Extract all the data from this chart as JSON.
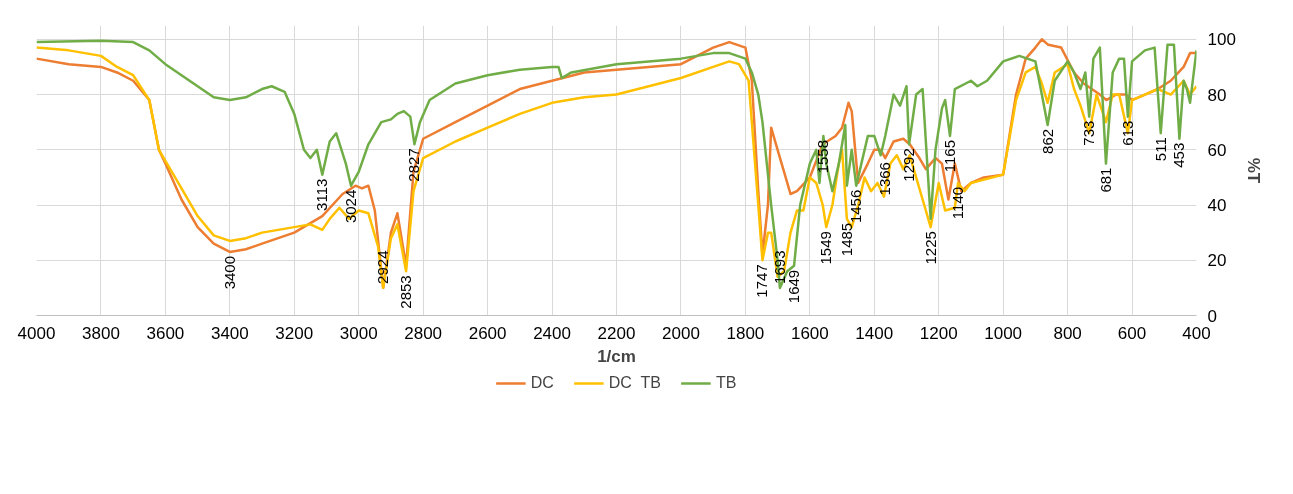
{
  "chart_data": {
    "type": "line",
    "xlabel": "1/cm",
    "ylabel": "%T",
    "xlim": [
      4000,
      400
    ],
    "ylim": [
      0,
      105
    ],
    "xticks": [
      4000,
      3800,
      3600,
      3400,
      3200,
      3000,
      2800,
      2600,
      2400,
      2200,
      2000,
      1800,
      1600,
      1400,
      1200,
      1000,
      800,
      600,
      400
    ],
    "yticks": [
      0,
      20,
      40,
      60,
      80,
      100
    ],
    "grid": true,
    "legend": "bottom",
    "marker": "none",
    "line_style": "solid",
    "series": [
      {
        "name": "DC",
        "color": "#ed7d31",
        "x": [
          4000,
          3900,
          3800,
          3750,
          3700,
          3650,
          3620,
          3600,
          3550,
          3500,
          3450,
          3400,
          3350,
          3300,
          3200,
          3113,
          3050,
          3010,
          2990,
          2970,
          2950,
          2924,
          2900,
          2880,
          2870,
          2853,
          2830,
          2800,
          2700,
          2600,
          2500,
          2400,
          2300,
          2200,
          2000,
          1900,
          1850,
          1800,
          1780,
          1760,
          1747,
          1730,
          1720,
          1700,
          1680,
          1660,
          1640,
          1600,
          1560,
          1520,
          1500,
          1480,
          1470,
          1450,
          1420,
          1400,
          1380,
          1366,
          1340,
          1310,
          1290,
          1260,
          1240,
          1210,
          1190,
          1170,
          1150,
          1130,
          1100,
          1060,
          1000,
          960,
          930,
          900,
          880,
          860,
          820,
          780,
          750,
          700,
          680,
          650,
          620,
          600,
          560,
          520,
          480,
          440,
          420,
          400
        ],
        "values": [
          93,
          91,
          90,
          88,
          85,
          78,
          60,
          55,
          42,
          32,
          26,
          23,
          24,
          26,
          30,
          36,
          44,
          47,
          46,
          47,
          38,
          10,
          30,
          37,
          30,
          18,
          52,
          64,
          70,
          76,
          82,
          85,
          88,
          89,
          91,
          97,
          99,
          97,
          85,
          45,
          22,
          40,
          68,
          60,
          52,
          44,
          45,
          50,
          62,
          65,
          68,
          77,
          74,
          48,
          55,
          60,
          60,
          57,
          63,
          64,
          62,
          57,
          53,
          57,
          55,
          42,
          55,
          45,
          48,
          50,
          51,
          80,
          93,
          97,
          100,
          98,
          97,
          88,
          84,
          80,
          78,
          80,
          80,
          78,
          80,
          82,
          85,
          90,
          95,
          95
        ]
      },
      {
        "name": "DC  TB",
        "color": "#ffc000",
        "x": [
          4000,
          3900,
          3800,
          3750,
          3700,
          3650,
          3620,
          3600,
          3550,
          3500,
          3450,
          3400,
          3350,
          3300,
          3200,
          3150,
          3113,
          3090,
          3060,
          3030,
          3000,
          2970,
          2940,
          2924,
          2900,
          2880,
          2853,
          2830,
          2800,
          2700,
          2600,
          2500,
          2400,
          2300,
          2200,
          2100,
          2000,
          1900,
          1850,
          1820,
          1790,
          1760,
          1747,
          1730,
          1720,
          1700,
          1680,
          1660,
          1640,
          1620,
          1600,
          1580,
          1560,
          1549,
          1530,
          1510,
          1500,
          1485,
          1470,
          1450,
          1430,
          1410,
          1390,
          1370,
          1350,
          1330,
          1310,
          1290,
          1270,
          1250,
          1225,
          1200,
          1180,
          1150,
          1140,
          1120,
          1100,
          1000,
          960,
          930,
          900,
          880,
          862,
          840,
          800,
          780,
          760,
          733,
          710,
          681,
          660,
          640,
          613,
          600,
          560,
          520,
          480,
          440,
          420,
          400
        ],
        "values": [
          97,
          96,
          94,
          90,
          87,
          78,
          60,
          56,
          46,
          36,
          29,
          27,
          28,
          30,
          32,
          33,
          31,
          35,
          39,
          35,
          38,
          37,
          25,
          10,
          28,
          33,
          16,
          45,
          57,
          63,
          68,
          73,
          77,
          79,
          80,
          83,
          86,
          90,
          92,
          91,
          85,
          40,
          20,
          30,
          30,
          14,
          16,
          30,
          38,
          38,
          50,
          48,
          40,
          32,
          40,
          55,
          60,
          35,
          32,
          40,
          50,
          45,
          48,
          43,
          55,
          58,
          53,
          58,
          50,
          42,
          32,
          48,
          38,
          39,
          48,
          45,
          48,
          51,
          78,
          88,
          90,
          84,
          77,
          88,
          91,
          82,
          76,
          66,
          80,
          70,
          80,
          80,
          66,
          78,
          80,
          82,
          80,
          85,
          80,
          83
        ]
      },
      {
        "name": "TB",
        "color": "#70ad47",
        "x": [
          4000,
          3800,
          3700,
          3650,
          3600,
          3500,
          3450,
          3400,
          3350,
          3300,
          3270,
          3230,
          3200,
          3170,
          3150,
          3130,
          3113,
          3090,
          3070,
          3040,
          3024,
          3000,
          2970,
          2930,
          2900,
          2880,
          2860,
          2840,
          2827,
          2810,
          2780,
          2700,
          2600,
          2500,
          2400,
          2380,
          2370,
          2340,
          2200,
          2100,
          2000,
          1900,
          1850,
          1800,
          1780,
          1760,
          1747,
          1720,
          1700,
          1693,
          1670,
          1649,
          1630,
          1600,
          1580,
          1570,
          1558,
          1549,
          1530,
          1510,
          1490,
          1485,
          1470,
          1456,
          1440,
          1420,
          1400,
          1380,
          1366,
          1340,
          1320,
          1300,
          1292,
          1270,
          1250,
          1225,
          1210,
          1190,
          1180,
          1165,
          1150,
          1100,
          1080,
          1050,
          1000,
          950,
          900,
          880,
          862,
          840,
          800,
          780,
          760,
          745,
          733,
          720,
          700,
          681,
          660,
          640,
          625,
          613,
          600,
          560,
          530,
          511,
          490,
          470,
          453,
          440,
          430,
          420,
          400
        ],
        "values": [
          99,
          99.5,
          99,
          96,
          91,
          83,
          79,
          78,
          79,
          82,
          83,
          81,
          73,
          60,
          57,
          60,
          51,
          63,
          66,
          55,
          47,
          52,
          62,
          70,
          71,
          73,
          74,
          72,
          62,
          70,
          78,
          84,
          87,
          89,
          90,
          90,
          86,
          88,
          91,
          92,
          93,
          95,
          95,
          93,
          88,
          80,
          70,
          40,
          20,
          10,
          16,
          18,
          40,
          55,
          60,
          48,
          65,
          55,
          45,
          55,
          69,
          47,
          60,
          47,
          55,
          65,
          65,
          58,
          65,
          80,
          76,
          83,
          62,
          80,
          82,
          35,
          60,
          75,
          78,
          65,
          82,
          85,
          83,
          85,
          92,
          94,
          92,
          80,
          69,
          85,
          92,
          88,
          82,
          88,
          72,
          93,
          97,
          55,
          88,
          93,
          93,
          72,
          92,
          96,
          97,
          66,
          98,
          98,
          64,
          85,
          82,
          77,
          96
        ]
      }
    ],
    "annotations": [
      {
        "text": "3400",
        "x": 3400,
        "y": 23
      },
      {
        "text": "3113",
        "x": 3113,
        "y": 51
      },
      {
        "text": "3024",
        "x": 3024,
        "y": 47
      },
      {
        "text": "2924",
        "x": 2924,
        "y": 10
      },
      {
        "text": "2853",
        "x": 2853,
        "y": 16
      },
      {
        "text": "2827",
        "x": 2827,
        "y": 62
      },
      {
        "text": "1747",
        "x": 1747,
        "y": 20
      },
      {
        "text": "1693",
        "x": 1693,
        "y": 10
      },
      {
        "text": "1649",
        "x": 1649,
        "y": 18
      },
      {
        "text": "1558",
        "x": 1558,
        "y": 65
      },
      {
        "text": "1549",
        "x": 1549,
        "y": 32
      },
      {
        "text": "1485",
        "x": 1485,
        "y": 35
      },
      {
        "text": "1456",
        "x": 1456,
        "y": 47
      },
      {
        "text": "1366",
        "x": 1366,
        "y": 57
      },
      {
        "text": "1292",
        "x": 1292,
        "y": 62
      },
      {
        "text": "1225",
        "x": 1225,
        "y": 32
      },
      {
        "text": "1165",
        "x": 1165,
        "y": 65
      },
      {
        "text": "1140",
        "x": 1140,
        "y": 48
      },
      {
        "text": "862",
        "x": 862,
        "y": 69
      },
      {
        "text": "733",
        "x": 733,
        "y": 72
      },
      {
        "text": "681",
        "x": 681,
        "y": 55
      },
      {
        "text": "613",
        "x": 613,
        "y": 72
      },
      {
        "text": "511",
        "x": 511,
        "y": 66
      },
      {
        "text": "453",
        "x": 453,
        "y": 64
      }
    ]
  }
}
